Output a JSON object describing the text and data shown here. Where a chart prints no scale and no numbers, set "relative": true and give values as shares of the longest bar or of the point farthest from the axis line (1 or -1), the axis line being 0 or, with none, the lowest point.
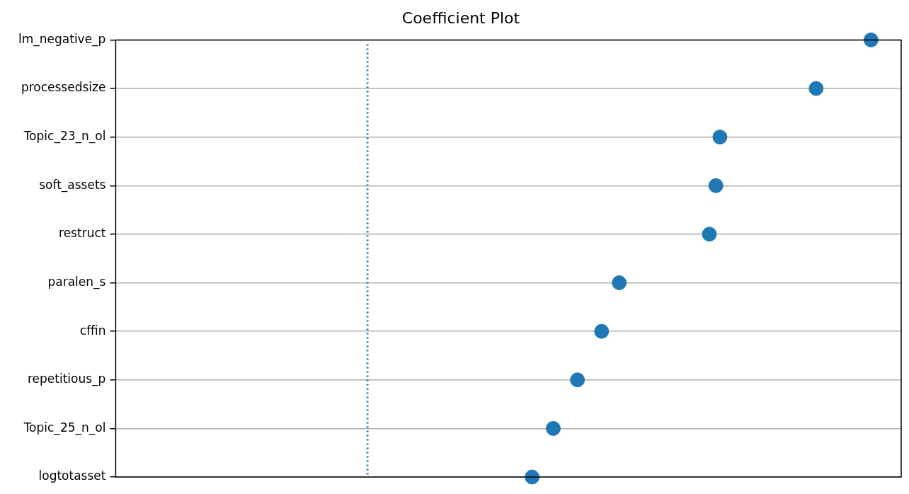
{
  "chart_data": {
    "type": "scatter",
    "title": "Coefficient Plot",
    "orientation": "horizontal",
    "relative": true,
    "grid": "y",
    "marker": "circle",
    "categories": [
      "lm_negative_p",
      "processedsize",
      "Topic_23_n_ol",
      "soft_assets",
      "restruct",
      "paralen_s",
      "cffin",
      "repetitious_p",
      "Topic_25_n_ol",
      "logtotasset"
    ],
    "series": [
      {
        "color": "#1f77b4",
        "values": [
          1,
          0.891,
          0.7,
          0.692,
          0.679,
          0.5,
          0.465,
          0.417,
          0.369,
          0.327
        ]
      }
    ],
    "ref_lines": [
      {
        "axis": "x",
        "value": 0,
        "color": "#1f77b4",
        "line_style": "dotted"
      }
    ]
  }
}
